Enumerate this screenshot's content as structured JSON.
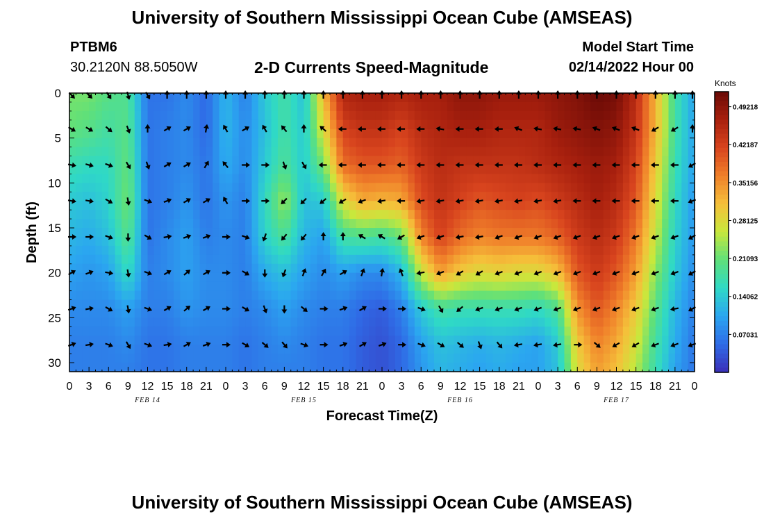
{
  "header": {
    "title": "University of Southern Mississippi Ocean Cube (AMSEAS)",
    "station_id": "PTBM6",
    "coordinates": "30.2120N  88.5050W",
    "subtitle": "2-D Currents Speed-Magnitude",
    "model_start_label": "Model Start Time",
    "model_start_value": "02/14/2022 Hour 00"
  },
  "footer": {
    "repeated_title": "University of Southern Mississippi Ocean Cube (AMSEAS)"
  },
  "chart_data": {
    "type": "heatmap",
    "title": "2-D Currents Speed-Magnitude",
    "xlabel": "Forecast Time(Z)",
    "ylabel": "Depth (ft)",
    "x_hours": [
      0,
      96
    ],
    "ylim": [
      0,
      31
    ],
    "y_inverted": true,
    "x_tick_labels": [
      "0",
      "3",
      "6",
      "9",
      "12",
      "15",
      "18",
      "21",
      "0",
      "3",
      "6",
      "9",
      "12",
      "15",
      "18",
      "21",
      "0",
      "3",
      "6",
      "9",
      "12",
      "15",
      "18",
      "21",
      "0",
      "3",
      "6",
      "9",
      "12",
      "15",
      "18",
      "21",
      "0"
    ],
    "y_ticks": [
      0,
      5,
      10,
      15,
      20,
      25,
      30
    ],
    "date_labels": [
      {
        "label": "FEB 14",
        "hour": 12
      },
      {
        "label": "FEB 15",
        "hour": 36
      },
      {
        "label": "FEB 16",
        "hour": 60
      },
      {
        "label": "FEB 17",
        "hour": 84
      }
    ],
    "colorbar": {
      "unit": "Knots",
      "range": [
        0.0,
        0.52
      ],
      "tick_labels": [
        "0.49218",
        "0.42187",
        "0.35156",
        "0.28125",
        "0.21093",
        "0.14062",
        "0.07031"
      ],
      "tick_values": [
        0.49218,
        0.42187,
        0.35156,
        0.28125,
        0.21093,
        0.14062,
        0.07031
      ],
      "colormap": [
        "#3b2fb8",
        "#2f6be6",
        "#2ba6f0",
        "#2fd9c6",
        "#5fe07a",
        "#c8e83c",
        "#f5c03a",
        "#f0802a",
        "#d8441e",
        "#a8200e",
        "#6a0a06"
      ]
    },
    "arrow_depths": [
      0,
      4,
      8,
      12,
      16,
      20,
      24,
      28
    ],
    "arrow_hours": [
      0,
      3,
      6,
      9,
      12,
      15,
      18,
      21,
      24,
      27,
      30,
      33,
      36,
      39,
      42,
      45,
      48,
      51,
      54,
      57,
      60,
      63,
      66,
      69,
      72,
      75,
      78,
      81,
      84,
      87,
      90,
      93,
      96
    ],
    "speed_keypoints": {
      "hours": [
        0,
        3,
        6,
        9,
        12,
        15,
        18,
        21,
        24,
        27,
        30,
        33,
        36,
        39,
        42,
        45,
        48,
        51,
        54,
        57,
        60,
        63,
        66,
        69,
        72,
        75,
        78,
        81,
        84,
        87,
        90,
        93,
        96
      ],
      "depths": [
        0,
        4,
        8,
        12,
        16,
        20,
        24,
        28,
        31
      ],
      "values": [
        [
          0.22,
          0.22,
          0.2,
          0.19,
          0.06,
          0.06,
          0.08,
          0.05,
          0.12,
          0.07,
          0.14,
          0.18,
          0.13,
          0.32,
          0.46,
          0.47,
          0.47,
          0.46,
          0.47,
          0.47,
          0.49,
          0.49,
          0.48,
          0.48,
          0.48,
          0.49,
          0.5,
          0.52,
          0.51,
          0.45,
          0.32,
          0.18,
          0.1
        ],
        [
          0.21,
          0.2,
          0.18,
          0.2,
          0.06,
          0.07,
          0.08,
          0.05,
          0.12,
          0.08,
          0.13,
          0.18,
          0.14,
          0.28,
          0.42,
          0.44,
          0.44,
          0.42,
          0.45,
          0.46,
          0.47,
          0.47,
          0.46,
          0.46,
          0.46,
          0.48,
          0.49,
          0.5,
          0.49,
          0.44,
          0.32,
          0.18,
          0.1
        ],
        [
          0.17,
          0.16,
          0.16,
          0.21,
          0.06,
          0.07,
          0.08,
          0.06,
          0.11,
          0.08,
          0.14,
          0.19,
          0.14,
          0.22,
          0.38,
          0.4,
          0.4,
          0.39,
          0.43,
          0.45,
          0.44,
          0.44,
          0.44,
          0.44,
          0.45,
          0.46,
          0.47,
          0.48,
          0.47,
          0.42,
          0.3,
          0.17,
          0.1
        ],
        [
          0.14,
          0.13,
          0.15,
          0.22,
          0.06,
          0.07,
          0.09,
          0.06,
          0.09,
          0.07,
          0.16,
          0.24,
          0.13,
          0.14,
          0.28,
          0.33,
          0.32,
          0.33,
          0.41,
          0.44,
          0.42,
          0.4,
          0.41,
          0.42,
          0.41,
          0.43,
          0.45,
          0.47,
          0.45,
          0.4,
          0.28,
          0.16,
          0.09
        ],
        [
          0.12,
          0.11,
          0.13,
          0.2,
          0.06,
          0.08,
          0.1,
          0.07,
          0.08,
          0.07,
          0.15,
          0.19,
          0.12,
          0.1,
          0.18,
          0.19,
          0.18,
          0.21,
          0.36,
          0.42,
          0.38,
          0.36,
          0.37,
          0.37,
          0.37,
          0.39,
          0.43,
          0.45,
          0.43,
          0.37,
          0.26,
          0.15,
          0.09
        ],
        [
          0.1,
          0.09,
          0.1,
          0.16,
          0.07,
          0.08,
          0.1,
          0.08,
          0.08,
          0.07,
          0.11,
          0.13,
          0.1,
          0.08,
          0.1,
          0.08,
          0.08,
          0.12,
          0.26,
          0.34,
          0.3,
          0.28,
          0.29,
          0.28,
          0.28,
          0.31,
          0.4,
          0.43,
          0.4,
          0.34,
          0.23,
          0.14,
          0.08
        ],
        [
          0.08,
          0.08,
          0.08,
          0.1,
          0.07,
          0.07,
          0.09,
          0.08,
          0.08,
          0.07,
          0.08,
          0.1,
          0.08,
          0.07,
          0.07,
          0.05,
          0.04,
          0.07,
          0.14,
          0.18,
          0.17,
          0.17,
          0.17,
          0.17,
          0.16,
          0.19,
          0.35,
          0.4,
          0.36,
          0.3,
          0.2,
          0.12,
          0.07
        ],
        [
          0.07,
          0.07,
          0.07,
          0.08,
          0.06,
          0.06,
          0.07,
          0.07,
          0.07,
          0.06,
          0.07,
          0.08,
          0.07,
          0.06,
          0.06,
          0.04,
          0.03,
          0.05,
          0.1,
          0.13,
          0.12,
          0.11,
          0.12,
          0.11,
          0.1,
          0.14,
          0.3,
          0.36,
          0.33,
          0.27,
          0.18,
          0.11,
          0.06
        ],
        [
          0.07,
          0.07,
          0.07,
          0.07,
          0.06,
          0.06,
          0.07,
          0.07,
          0.07,
          0.06,
          0.07,
          0.07,
          0.07,
          0.06,
          0.06,
          0.04,
          0.03,
          0.05,
          0.09,
          0.12,
          0.11,
          0.1,
          0.11,
          0.1,
          0.1,
          0.13,
          0.28,
          0.34,
          0.31,
          0.25,
          0.17,
          0.1,
          0.06
        ]
      ]
    },
    "arrow_directions_deg": [
      [
        135,
        135,
        145,
        165,
        150,
        0,
        0,
        0,
        0,
        0,
        0,
        0,
        0,
        0,
        0,
        0,
        0,
        0,
        0,
        0,
        0,
        0,
        0,
        0,
        0,
        0,
        0,
        0,
        0,
        0,
        0,
        0,
        0
      ],
      [
        120,
        120,
        130,
        160,
        0,
        60,
        60,
        10,
        330,
        60,
        330,
        320,
        0,
        310,
        270,
        270,
        270,
        270,
        270,
        280,
        270,
        270,
        270,
        290,
        280,
        280,
        280,
        290,
        290,
        290,
        240,
        240,
        0
      ],
      [
        100,
        105,
        110,
        150,
        160,
        60,
        60,
        30,
        320,
        90,
        90,
        160,
        150,
        270,
        270,
        270,
        270,
        270,
        270,
        270,
        270,
        270,
        270,
        270,
        270,
        270,
        270,
        270,
        270,
        270,
        270,
        270,
        240
      ],
      [
        100,
        100,
        120,
        170,
        110,
        70,
        60,
        60,
        330,
        90,
        90,
        225,
        225,
        230,
        240,
        250,
        260,
        270,
        260,
        260,
        260,
        260,
        260,
        260,
        260,
        260,
        270,
        270,
        270,
        270,
        270,
        270,
        250
      ],
      [
        90,
        90,
        110,
        180,
        120,
        80,
        70,
        70,
        90,
        110,
        200,
        220,
        220,
        0,
        0,
        300,
        300,
        240,
        250,
        250,
        260,
        260,
        250,
        250,
        250,
        250,
        250,
        250,
        250,
        250,
        250,
        250,
        240
      ],
      [
        60,
        70,
        100,
        170,
        110,
        60,
        50,
        60,
        90,
        120,
        180,
        200,
        20,
        30,
        60,
        20,
        10,
        340,
        260,
        250,
        240,
        240,
        250,
        250,
        250,
        250,
        250,
        250,
        250,
        250,
        250,
        250,
        240
      ],
      [
        70,
        80,
        120,
        170,
        110,
        60,
        50,
        60,
        90,
        120,
        160,
        180,
        130,
        90,
        70,
        60,
        90,
        90,
        110,
        150,
        230,
        250,
        250,
        250,
        250,
        250,
        250,
        250,
        250,
        250,
        250,
        260,
        240
      ],
      [
        70,
        80,
        110,
        150,
        110,
        80,
        60,
        70,
        90,
        120,
        130,
        140,
        110,
        90,
        70,
        60,
        70,
        90,
        110,
        120,
        130,
        160,
        140,
        260,
        260,
        260,
        90,
        130,
        240,
        240,
        250,
        250,
        250
      ]
    ]
  }
}
